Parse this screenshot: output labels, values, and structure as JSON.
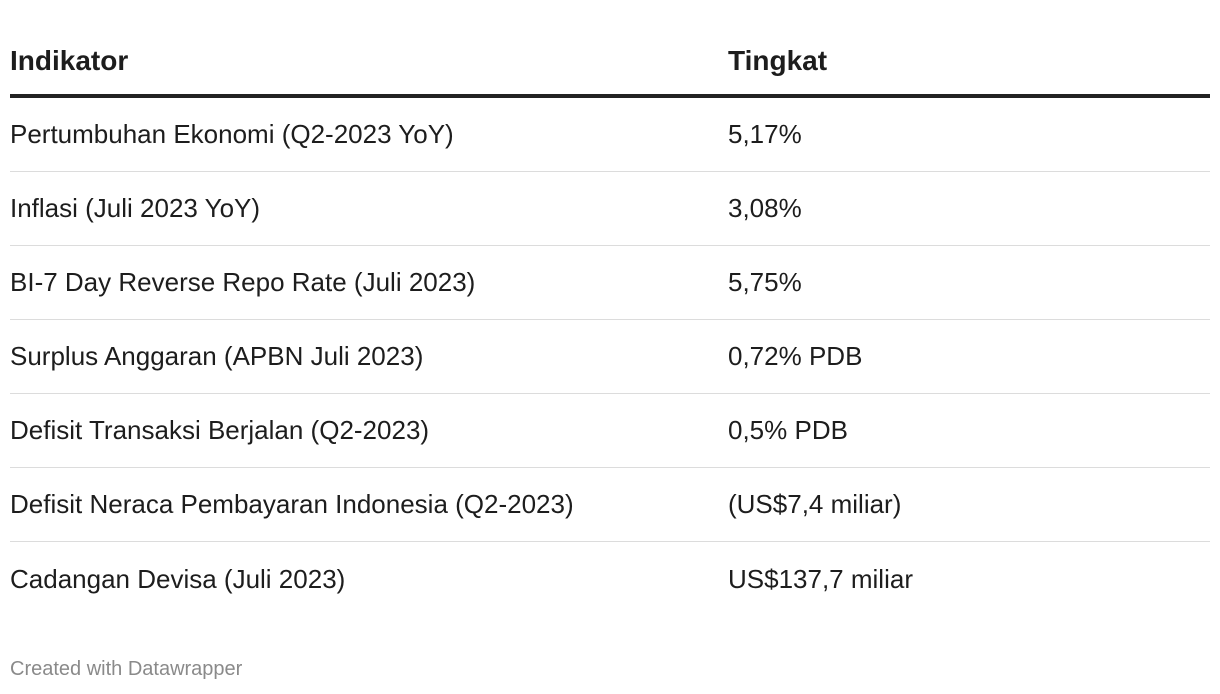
{
  "table": {
    "headers": [
      "Indikator",
      "Tingkat"
    ],
    "rows": [
      [
        "Pertumbuhan Ekonomi (Q2-2023 YoY)",
        "5,17%"
      ],
      [
        "Inflasi (Juli 2023 YoY)",
        "3,08%"
      ],
      [
        "BI-7 Day Reverse Repo Rate (Juli 2023)",
        "5,75%"
      ],
      [
        "Surplus Anggaran (APBN Juli 2023)",
        "0,72% PDB"
      ],
      [
        "Defisit Transaksi Berjalan (Q2-2023)",
        "0,5% PDB"
      ],
      [
        "Defisit Neraca Pembayaran Indonesia (Q2-2023)",
        "(US$7,4 miliar)"
      ],
      [
        "Cadangan Devisa (Juli 2023)",
        "US$137,7 miliar"
      ]
    ]
  },
  "footer": {
    "credit": "Created with Datawrapper"
  },
  "colors": {
    "text": "#1d1d1d",
    "header_rule": "#222222",
    "row_rule": "#dcdcdc",
    "credit": "#8a8a8a"
  }
}
